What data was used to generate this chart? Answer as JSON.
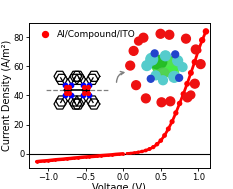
{
  "xlabel": "Voltage (V)",
  "ylabel": "Current Density (A/m²)",
  "legend_label": "Al/Compound/ITO",
  "legend_color": "#FF0000",
  "xlim": [
    -1.25,
    1.15
  ],
  "ylim": [
    -10,
    90
  ],
  "yticks": [
    0,
    20,
    40,
    60,
    80
  ],
  "xticks": [
    -1.0,
    -0.5,
    0.0,
    0.5,
    1.0
  ],
  "background_color": "#ffffff",
  "curve_color": "#FF0000",
  "voltage_neg": [
    -1.15,
    -1.1,
    -1.05,
    -1.0,
    -0.95,
    -0.9,
    -0.85,
    -0.8,
    -0.75,
    -0.7,
    -0.65,
    -0.6,
    -0.55,
    -0.5,
    -0.45,
    -0.4,
    -0.35,
    -0.3,
    -0.25,
    -0.2,
    -0.15,
    -0.1,
    -0.05,
    0.0
  ],
  "current_neg": [
    -5.5,
    -5.2,
    -5.0,
    -4.8,
    -4.5,
    -4.2,
    -4.0,
    -3.8,
    -3.5,
    -3.3,
    -3.0,
    -2.8,
    -2.5,
    -2.3,
    -2.1,
    -1.9,
    -1.7,
    -1.4,
    -1.2,
    -1.0,
    -0.8,
    -0.5,
    -0.3,
    -0.1
  ],
  "voltage_pos": [
    0.05,
    0.1,
    0.15,
    0.2,
    0.25,
    0.3,
    0.35,
    0.4,
    0.45,
    0.5,
    0.55,
    0.6,
    0.65,
    0.7,
    0.75,
    0.8,
    0.85,
    0.9,
    0.95,
    1.0,
    1.05,
    1.1
  ],
  "current_pos": [
    0.1,
    0.3,
    0.6,
    1.0,
    1.5,
    2.2,
    3.2,
    4.5,
    6.5,
    9.0,
    12.5,
    17.0,
    22.0,
    28.0,
    34.5,
    41.0,
    48.0,
    55.5,
    63.0,
    71.0,
    78.0,
    84.0
  ],
  "font_size_label": 7,
  "font_size_tick": 6,
  "font_size_legend": 6.5
}
